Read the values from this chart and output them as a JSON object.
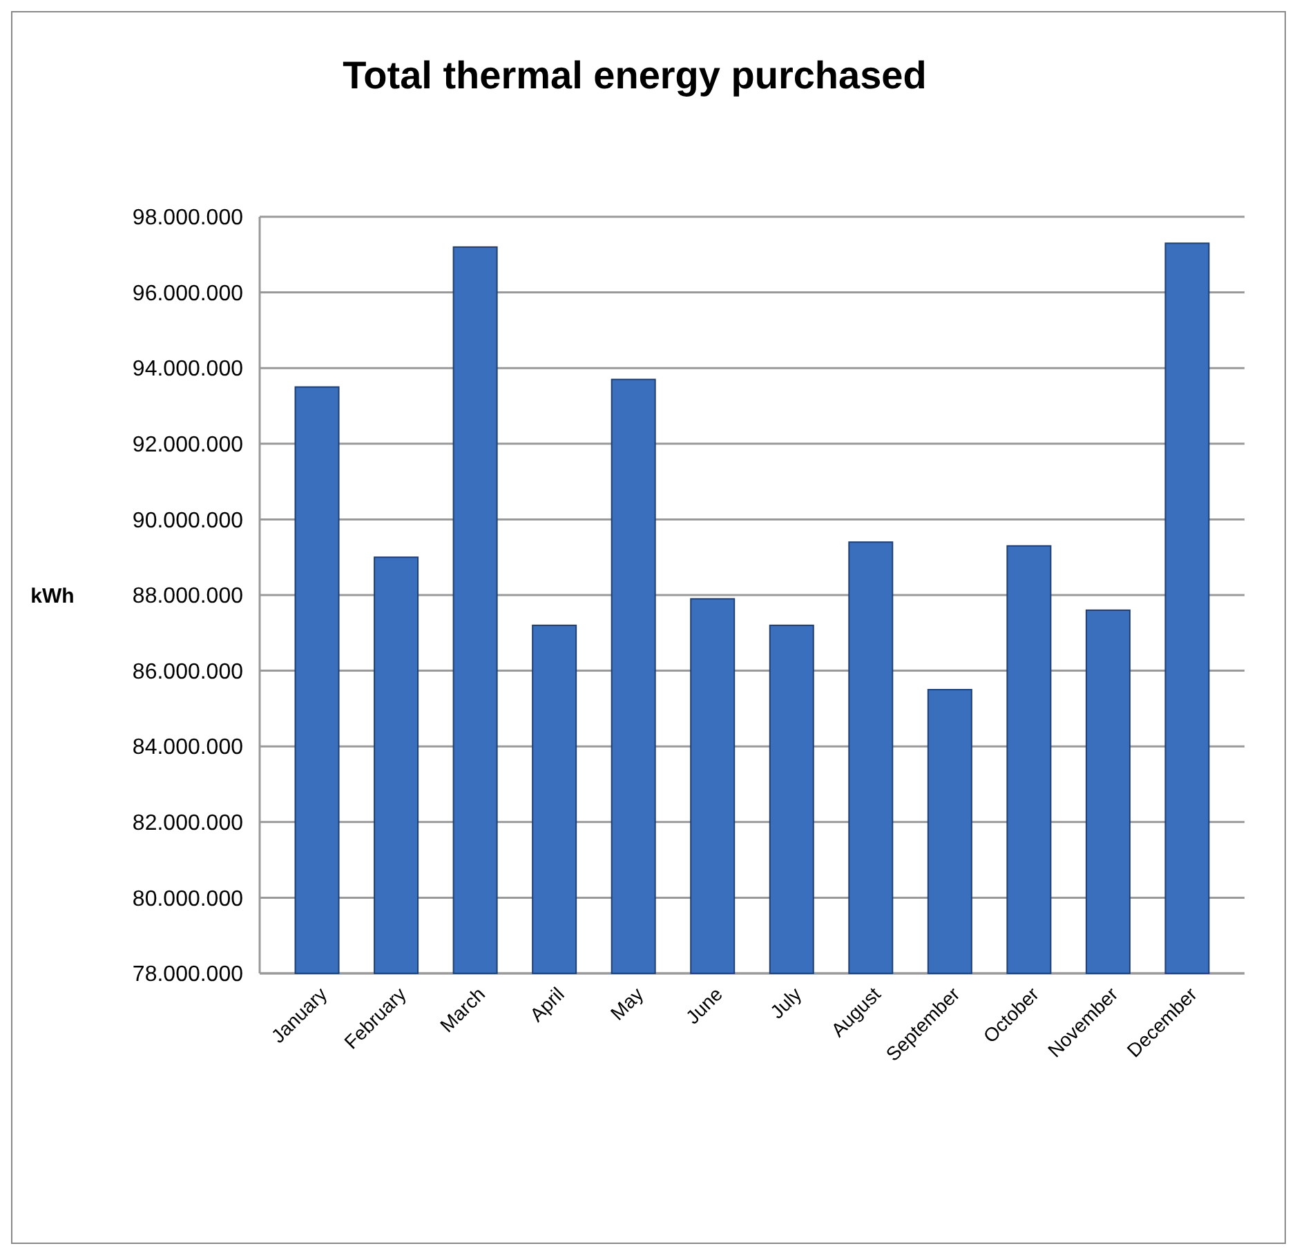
{
  "chart_data": {
    "type": "bar",
    "title": "Total thermal energy purchased",
    "ylabel": "kWh",
    "categories": [
      "January",
      "February",
      "March",
      "April",
      "May",
      "June",
      "July",
      "August",
      "September",
      "October",
      "November",
      "December"
    ],
    "series": [
      {
        "color": "#3a6fbe",
        "values": [
          93500000,
          89000000,
          97200000,
          87200000,
          93700000,
          87900000,
          87200000,
          89400000,
          85500000,
          89300000,
          87600000,
          97300000
        ]
      }
    ],
    "ylim": [
      78000000,
      98000000
    ],
    "yticks": [
      {
        "value": 78000000,
        "label": "78.000.000"
      },
      {
        "value": 80000000,
        "label": "80.000.000"
      },
      {
        "value": 82000000,
        "label": "82.000.000"
      },
      {
        "value": 84000000,
        "label": "84.000.000"
      },
      {
        "value": 86000000,
        "label": "86.000.000"
      },
      {
        "value": 88000000,
        "label": "88.000.000"
      },
      {
        "value": 90000000,
        "label": "90.000.000"
      },
      {
        "value": 92000000,
        "label": "92.000.000"
      },
      {
        "value": 94000000,
        "label": "94.000.000"
      },
      {
        "value": 96000000,
        "label": "96.000.000"
      },
      {
        "value": 98000000,
        "label": "98.000.000"
      }
    ],
    "grid": "y"
  }
}
